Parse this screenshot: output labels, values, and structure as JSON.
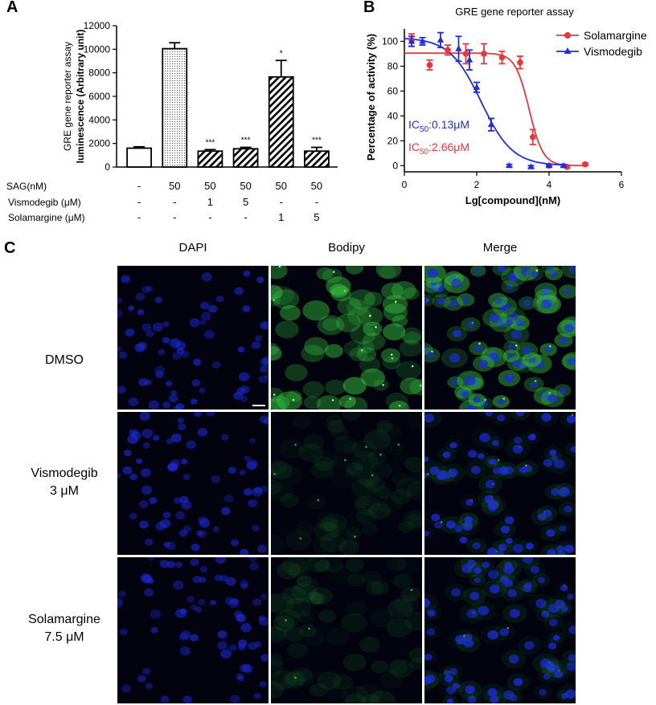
{
  "panels": {
    "a": "A",
    "b": "B",
    "c": "C"
  },
  "chart_data": [
    {
      "type": "bar",
      "ylabel_line1": "GRE gene reporter assay",
      "ylabel_line2": "luminescence (Arbitrary unit)",
      "ylim": [
        0,
        12000
      ],
      "yticks": [
        "0",
        "2000",
        "4000",
        "6000",
        "8000",
        "10000",
        "12000"
      ],
      "values": [
        1600,
        10050,
        1350,
        1550,
        7650,
        1350
      ],
      "errors": [
        120,
        500,
        130,
        120,
        1400,
        320
      ],
      "significance": [
        "",
        "",
        "***",
        "***",
        "*",
        "***"
      ],
      "fills": [
        "white",
        "dots",
        "hatch",
        "hatch",
        "hatch",
        "hatch"
      ],
      "condition_rows": [
        {
          "label": "SAG(nM)",
          "values": [
            "-",
            "50",
            "50",
            "50",
            "50",
            "50"
          ]
        },
        {
          "label": "Vismodegib (μM)",
          "values": [
            "-",
            "-",
            "1",
            "5",
            "-",
            "-"
          ]
        },
        {
          "label": "Solamargine (μM)",
          "values": [
            "-",
            "-",
            "-",
            "-",
            "1",
            "5"
          ]
        }
      ]
    },
    {
      "type": "scatter",
      "title": "GRE gene reporter assay",
      "xlabel": "Lg[compound](nM)",
      "ylabel": "Percentage of activity (%)",
      "xlim": [
        0,
        6
      ],
      "ylim": [
        -5,
        110
      ],
      "xticks": [
        "0",
        "2",
        "4",
        "6"
      ],
      "yticks": [
        "0",
        "20",
        "40",
        "60",
        "80",
        "100"
      ],
      "legend_position": "top-right",
      "series": [
        {
          "name": "Solamargine",
          "color": "#e8383b",
          "marker": "circle",
          "x": [
            0.2,
            0.7,
            1.2,
            1.7,
            2.2,
            2.7,
            3.2,
            3.55,
            4.0,
            4.5,
            5.0
          ],
          "y": [
            101,
            81,
            93,
            90,
            90,
            87,
            83,
            23,
            0,
            -1,
            1
          ],
          "err": [
            5,
            4,
            4,
            8,
            8,
            5,
            5,
            6,
            1,
            1,
            1
          ],
          "ic50": "IC50:2.66μM",
          "ic50_prefix": "IC",
          "ic50_sub": "50",
          "ic50_suffix": ":2.66μM"
        },
        {
          "name": "Vismodegib",
          "color": "#1f2de0",
          "marker": "triangle",
          "x": [
            0.2,
            0.5,
            1.0,
            1.5,
            1.8,
            2.0,
            2.4,
            2.9,
            3.5,
            4.0,
            4.4
          ],
          "y": [
            100,
            100,
            101,
            94,
            85,
            63,
            33,
            0,
            -1,
            0,
            0
          ],
          "err": [
            4,
            3,
            6,
            10,
            8,
            4,
            5,
            1,
            1,
            1,
            1
          ],
          "ic50": "IC50:0.13μM",
          "ic50_prefix": "IC",
          "ic50_sub": "50",
          "ic50_suffix": ":0.13μM"
        }
      ]
    }
  ],
  "microscopy": {
    "columns": [
      "DAPI",
      "Bodipy",
      "Merge"
    ],
    "rows": [
      {
        "line1": "DMSO",
        "line2": ""
      },
      {
        "line1": "Vismodegib",
        "line2": "3 μM"
      },
      {
        "line1": "Solamargine",
        "line2": "7.5 μM"
      }
    ],
    "colors": {
      "dapi": "#1b2bd8",
      "bodipy": "#37c83f",
      "background": "#02030f"
    }
  }
}
